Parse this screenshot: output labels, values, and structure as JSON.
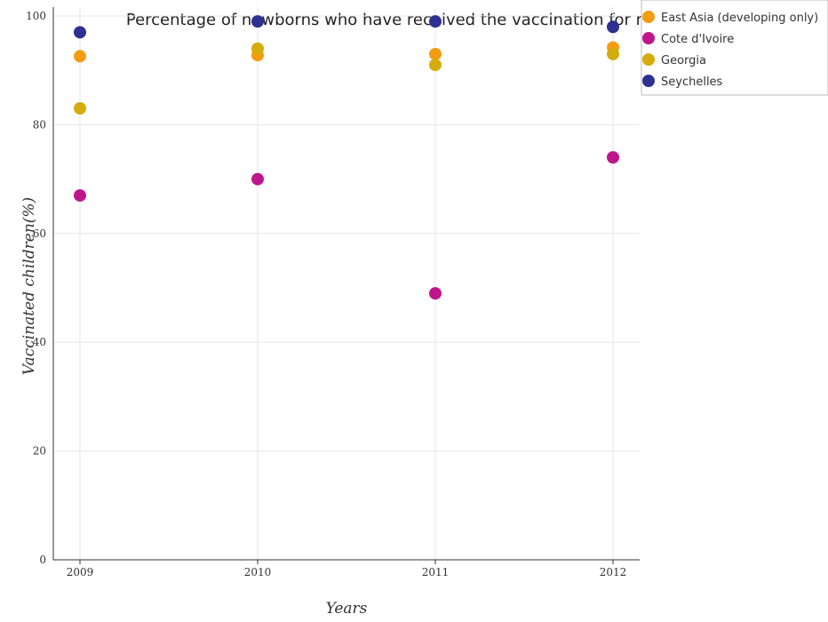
{
  "chart_data": {
    "type": "scatter",
    "title": "Percentage of newborns who have received the vaccination for measles",
    "xlabel": "Years",
    "ylabel": "Vaccinated children(%)",
    "categories": [
      "2009",
      "2010",
      "2011",
      "2012"
    ],
    "ylim": [
      0,
      100
    ],
    "yticks": [
      0,
      20,
      40,
      60,
      80,
      100
    ],
    "grid": true,
    "legend_position": "top-right",
    "series": [
      {
        "name": "East Asia (developing only)",
        "color": "#f39c12",
        "values": [
          92.6,
          92.8,
          93.0,
          94.2
        ]
      },
      {
        "name": "Cote d'Ivoire",
        "color": "#c0168c",
        "values": [
          67,
          70,
          49,
          74
        ]
      },
      {
        "name": "Georgia",
        "color": "#d4ac0d",
        "values": [
          83,
          94,
          91,
          93
        ]
      },
      {
        "name": "Seychelles",
        "color": "#2e3192",
        "values": [
          97,
          99,
          99,
          98
        ]
      }
    ]
  }
}
